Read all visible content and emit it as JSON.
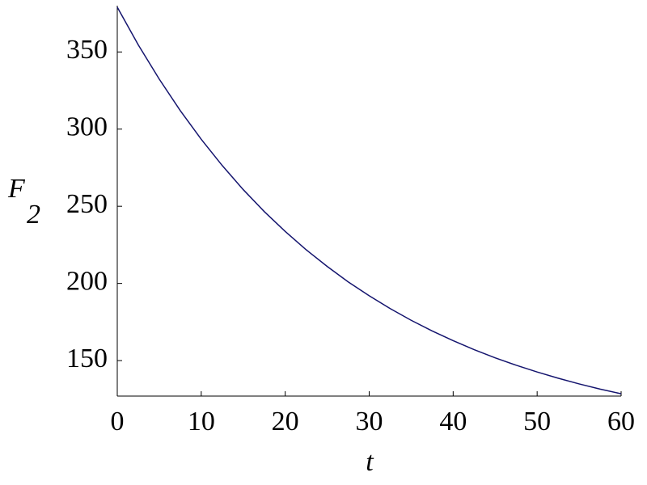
{
  "chart_data": {
    "type": "line",
    "xlabel": "t",
    "ylabel": "F",
    "ylabel_subscript": "2",
    "x": [
      0,
      2.5,
      5,
      7.5,
      10,
      12.5,
      15,
      17.5,
      20,
      22.5,
      25,
      27.5,
      30,
      32.5,
      35,
      37.5,
      40,
      42.5,
      45,
      47.5,
      50,
      52.5,
      55,
      57.5,
      60
    ],
    "series": [
      {
        "color": "#14146e",
        "values": [
          379,
          354.6,
          332.4,
          312.0,
          293.4,
          276.4,
          260.8,
          246.6,
          233.7,
          221.8,
          211.0,
          201.0,
          192.0,
          183.7,
          176.1,
          169.2,
          162.9,
          157.1,
          151.8,
          147.0,
          142.6,
          138.6,
          134.9,
          131.5,
          128.5
        ]
      }
    ],
    "xlim": [
      0,
      60
    ],
    "xticks": [
      0,
      10,
      20,
      30,
      40,
      50,
      60
    ],
    "ylim": [
      127,
      380
    ],
    "yticks": [
      150,
      200,
      250,
      300,
      350
    ],
    "grid": false
  }
}
